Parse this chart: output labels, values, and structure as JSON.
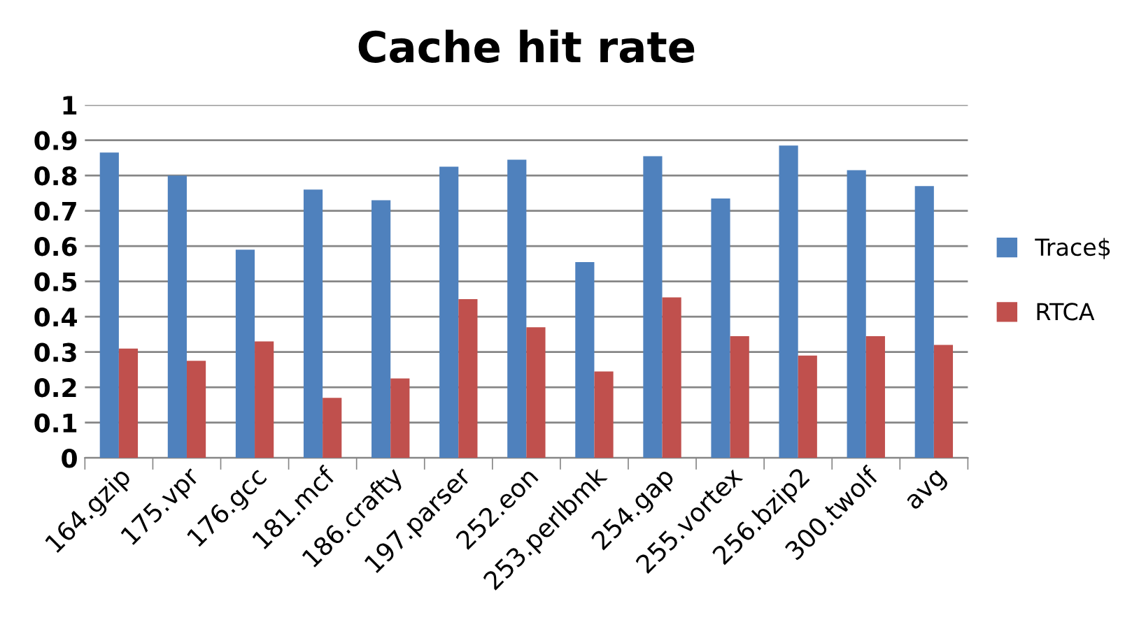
{
  "chart_data": {
    "type": "bar",
    "title": "Cache hit rate",
    "categories": [
      "164.gzip",
      "175.vpr",
      "176.gcc",
      "181.mcf",
      "186.crafty",
      "197.parser",
      "252.eon",
      "253.perlbmk",
      "254.gap",
      "255.vortex",
      "256.bzip2",
      "300.twolf",
      "avg"
    ],
    "series": [
      {
        "name": "Trace$",
        "color": "#4f81bd",
        "values": [
          0.865,
          0.8,
          0.59,
          0.76,
          0.73,
          0.825,
          0.845,
          0.555,
          0.855,
          0.735,
          0.885,
          0.815,
          0.77
        ]
      },
      {
        "name": "RTCA",
        "color": "#c0504d",
        "values": [
          0.31,
          0.275,
          0.33,
          0.17,
          0.225,
          0.45,
          0.37,
          0.245,
          0.455,
          0.345,
          0.29,
          0.345,
          0.32
        ]
      }
    ],
    "ylim": [
      0,
      1
    ],
    "yticks": [
      0,
      0.1,
      0.2,
      0.3,
      0.4,
      0.5,
      0.6,
      0.7,
      0.8,
      0.9,
      1
    ],
    "grid": "y",
    "legend": "right"
  }
}
